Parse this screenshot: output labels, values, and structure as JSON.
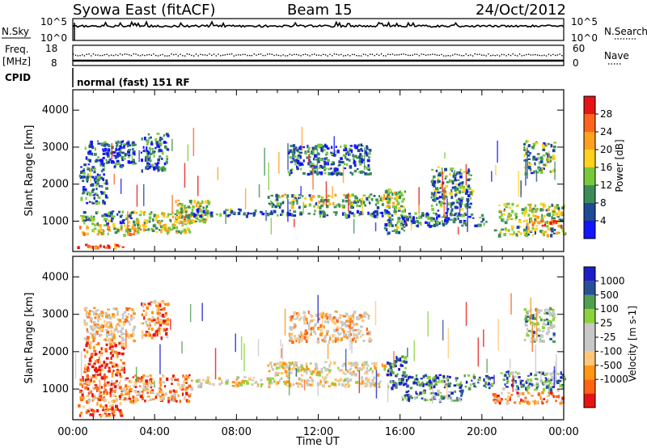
{
  "header": {
    "station": "Syowa East (fitACF)",
    "beam": "Beam 15",
    "date": "24/Oct/2012"
  },
  "status_panels": {
    "nsky_label": "N.Sky",
    "nsearch_label": "N.Search",
    "freq_label_1": "Freq.",
    "freq_label_2": "[MHz]",
    "nave_label": "Nave",
    "cpid_label": "CPID",
    "cpid_value": "normal (fast) 151 RF",
    "noise_ticks_left": [
      "10^5",
      "10^0"
    ],
    "noise_ticks_right": [
      "10^5",
      "10^0"
    ],
    "freq_ticks": [
      "18",
      "8"
    ],
    "nave_ticks": [
      "60",
      "0"
    ]
  },
  "axes": {
    "ylabel": "Slant Range [km]",
    "xlabel": "Time UT",
    "x_ticks": [
      "00:00",
      "04:00",
      "08:00",
      "12:00",
      "16:00",
      "20:00",
      "00:00"
    ],
    "y_ticks": [
      "1000",
      "2000",
      "3000",
      "4000"
    ]
  },
  "colors": {
    "power_scale": [
      "#1414ff",
      "#1e4a96",
      "#3c8c5a",
      "#78c83c",
      "#ffd21e",
      "#ffa01e",
      "#ff641e",
      "#e61414"
    ],
    "velocity_scale": [
      "#e61414",
      "#ff6414",
      "#ff9614",
      "#ffc878",
      "#c8c8c8",
      "#c8c8c8",
      "#8cd23c",
      "#50a050",
      "#28509a",
      "#1e1ec8"
    ]
  },
  "chart_data": [
    {
      "type": "heatmap",
      "title": "Power",
      "xlabel": "Time UT",
      "ylabel": "Slant Range [km]",
      "xlim": [
        0,
        24
      ],
      "ylim": [
        180,
        4550
      ],
      "colorbar": {
        "label": "Power [dB]",
        "ticks": [
          "4",
          "8",
          "12",
          "16",
          "20",
          "24",
          "28"
        ],
        "range": [
          0,
          32
        ]
      },
      "regions": [
        {
          "t": [
            0.2,
            2.5
          ],
          "r": [
            300,
            400
          ],
          "v": 29
        },
        {
          "t": [
            0.3,
            3.2
          ],
          "r": [
            650,
            950
          ],
          "v": 18
        },
        {
          "t": [
            0.3,
            3.0
          ],
          "r": [
            950,
            1300
          ],
          "v": 9
        },
        {
          "t": [
            0.3,
            1.6
          ],
          "r": [
            1500,
            2500
          ],
          "v": 6
        },
        {
          "t": [
            0.5,
            3.0
          ],
          "r": [
            2500,
            3200
          ],
          "v": 5
        },
        {
          "t": [
            3.0,
            5.8
          ],
          "r": [
            700,
            1300
          ],
          "v": 17
        },
        {
          "t": [
            3.3,
            4.6
          ],
          "r": [
            2400,
            3400
          ],
          "v": 6
        },
        {
          "t": [
            5.0,
            6.6
          ],
          "r": [
            1000,
            1600
          ],
          "v": 16
        },
        {
          "t": [
            5.8,
            8.5
          ],
          "r": [
            1150,
            1350
          ],
          "v": 7
        },
        {
          "t": [
            8.5,
            12.3
          ],
          "r": [
            1180,
            1320
          ],
          "v": 6
        },
        {
          "t": [
            9.5,
            15.5
          ],
          "r": [
            1400,
            1750
          ],
          "v": 13
        },
        {
          "t": [
            10.5,
            14.5
          ],
          "r": [
            2300,
            3100
          ],
          "v": 7
        },
        {
          "t": [
            12.0,
            15.5
          ],
          "r": [
            1150,
            1300
          ],
          "v": 6
        },
        {
          "t": [
            15.2,
            16.3
          ],
          "r": [
            700,
            1400
          ],
          "v": 9
        },
        {
          "t": [
            15.2,
            16.2
          ],
          "r": [
            1400,
            1900
          ],
          "v": 15
        },
        {
          "t": [
            16.0,
            20.2
          ],
          "r": [
            900,
            1250
          ],
          "v": 6
        },
        {
          "t": [
            17.5,
            19.5
          ],
          "r": [
            1300,
            2500
          ],
          "v": 9
        },
        {
          "t": [
            20.8,
            24.0
          ],
          "r": [
            1000,
            1500
          ],
          "v": 15
        },
        {
          "t": [
            22.0,
            23.9
          ],
          "r": [
            900,
            1050
          ],
          "v": 26
        },
        {
          "t": [
            20.5,
            24.0
          ],
          "r": [
            650,
            900
          ],
          "v": 13
        },
        {
          "t": [
            22.0,
            23.5
          ],
          "r": [
            2300,
            3200
          ],
          "v": 11
        }
      ]
    },
    {
      "type": "heatmap",
      "title": "Velocity",
      "xlabel": "Time UT",
      "ylabel": "Slant Range [km]",
      "xlim": [
        0,
        24
      ],
      "ylim": [
        180,
        4550
      ],
      "colorbar": {
        "label": "Velocity [m s-1]",
        "ticks": [
          "1000",
          "500",
          "100",
          "25",
          "-25",
          "-100",
          "-500",
          "-1000"
        ],
        "range": [
          -1200,
          1200
        ]
      },
      "regions": [
        {
          "t": [
            0.2,
            2.5
          ],
          "r": [
            300,
            600
          ],
          "v": -700
        },
        {
          "t": [
            0.3,
            3.2
          ],
          "r": [
            650,
            1400
          ],
          "v": -400
        },
        {
          "t": [
            0.5,
            2.5
          ],
          "r": [
            1400,
            2300
          ],
          "v": -600
        },
        {
          "t": [
            0.5,
            3.0
          ],
          "r": [
            2300,
            3200
          ],
          "v": -80
        },
        {
          "t": [
            3.0,
            5.8
          ],
          "r": [
            700,
            1400
          ],
          "v": -300
        },
        {
          "t": [
            3.3,
            4.6
          ],
          "r": [
            2400,
            3400
          ],
          "v": -150
        },
        {
          "t": [
            6.0,
            15.0
          ],
          "r": [
            1100,
            1350
          ],
          "v": 0
        },
        {
          "t": [
            9.5,
            15.5
          ],
          "r": [
            1400,
            1750
          ],
          "v": -10
        },
        {
          "t": [
            10.5,
            14.5
          ],
          "r": [
            2300,
            3100
          ],
          "v": -30
        },
        {
          "t": [
            15.3,
            20.5
          ],
          "r": [
            1050,
            1400
          ],
          "v": 800
        },
        {
          "t": [
            15.3,
            16.3
          ],
          "r": [
            1400,
            1900
          ],
          "v": 900
        },
        {
          "t": [
            16.0,
            19.0
          ],
          "r": [
            700,
            1000
          ],
          "v": 200
        },
        {
          "t": [
            20.8,
            24.0
          ],
          "r": [
            1000,
            1500
          ],
          "v": 120
        },
        {
          "t": [
            20.5,
            24.0
          ],
          "r": [
            650,
            950
          ],
          "v": -350
        },
        {
          "t": [
            22.0,
            23.5
          ],
          "r": [
            2300,
            3200
          ],
          "v": 40
        }
      ]
    }
  ]
}
